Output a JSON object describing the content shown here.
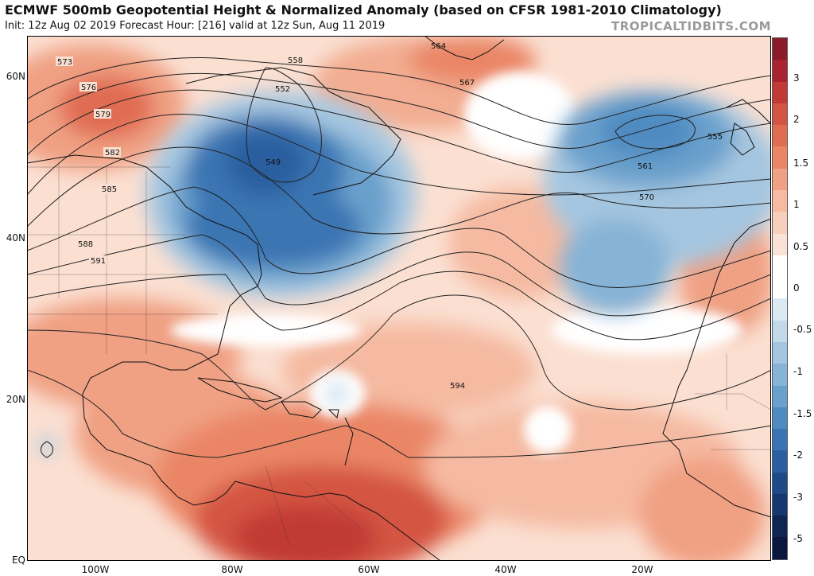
{
  "header": {
    "title": "ECMWF 500mb Geopotential Height & Normalized Anomaly (based on CFSR 1981-2010 Climatology)",
    "subtitle": "Init: 12z Aug 02 2019   Forecast Hour: [216]   valid at 12z Sun, Aug 11 2019",
    "brand": "TROPICALTIDBITS.COM"
  },
  "axes": {
    "lat_labels": [
      "60N",
      "40N",
      "20N",
      "EQ"
    ],
    "lon_labels": [
      "100W",
      "80W",
      "60W",
      "40W",
      "20W"
    ]
  },
  "colorbar": {
    "labels": [
      "3",
      "2",
      "1.5",
      "1",
      "0.5",
      "0",
      "-0.5",
      "-1",
      "-1.5",
      "-2",
      "-3",
      "-5"
    ],
    "colors": [
      "#8b1a2b",
      "#a8252f",
      "#c13a36",
      "#d45443",
      "#e06d52",
      "#ea8666",
      "#f0a083",
      "#f5baa1",
      "#f8cfbd",
      "#fbe2d6",
      "#ffffff",
      "#ffffff",
      "#dbe9f3",
      "#c2d9ea",
      "#a4c6e0",
      "#86b3d6",
      "#6aa0cc",
      "#4f8bc1",
      "#3a74b2",
      "#2b5e9f",
      "#1f4a88",
      "#17386e",
      "#0f2654",
      "#0a1840"
    ]
  },
  "contours": {
    "labels": [
      "573",
      "576",
      "579",
      "582",
      "585",
      "588",
      "591",
      "558",
      "552",
      "564",
      "567",
      "549",
      "555",
      "570",
      "561",
      "594"
    ]
  },
  "map_features": {
    "positive_anomaly_color": "#e8826a",
    "negative_anomaly_color": "#3a74b2",
    "contour_color": "#222222",
    "coast_color": "#111111"
  }
}
